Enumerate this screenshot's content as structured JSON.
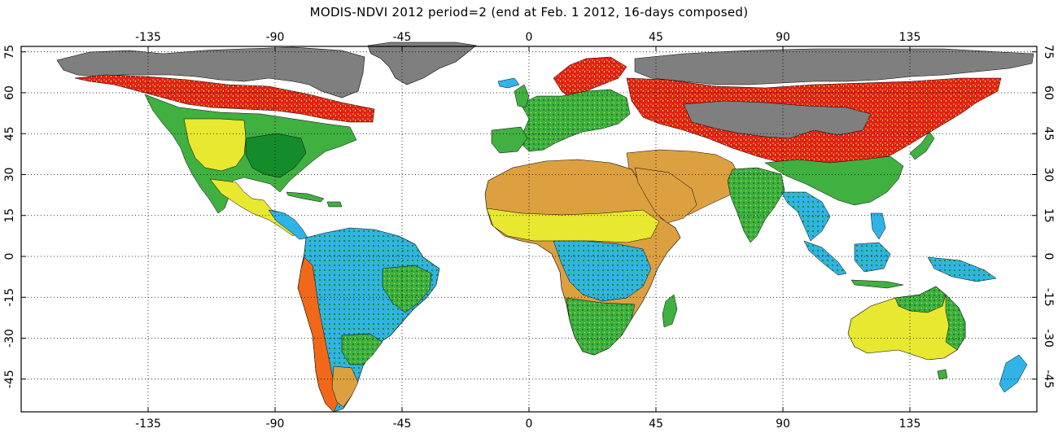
{
  "title": "MODIS-NDVI 2012 period=2 (end at Feb. 1 2012, 16-days composed)",
  "map": {
    "longitude_ticks": [
      "-135",
      "-90",
      "-45",
      "0",
      "45",
      "90",
      "135"
    ],
    "latitude_ticks": [
      "75",
      "60",
      "45",
      "30",
      "15",
      "0",
      "-15",
      "-30",
      "-45"
    ],
    "lon_values": [
      -135,
      -90,
      -45,
      0,
      45,
      90,
      135
    ],
    "lat_values": [
      75,
      60,
      45,
      30,
      15,
      0,
      -15,
      -30,
      -45
    ],
    "lon_range": [
      -180,
      180
    ],
    "lat_range": [
      -57,
      77
    ],
    "grid": "dotted",
    "colors": {
      "ocean": "#ffffff",
      "no_data_snow": "#7f7f7f",
      "ndvi_very_low": "#e0201a",
      "ndvi_low": "#f06818",
      "ndvi_desert": "#dca040",
      "ndvi_mid": "#e8e830",
      "ndvi_high": "#40b040",
      "ndvi_very_high": "#148c2c",
      "ndvi_max": "#30b4e8",
      "borders": "#000000"
    }
  }
}
